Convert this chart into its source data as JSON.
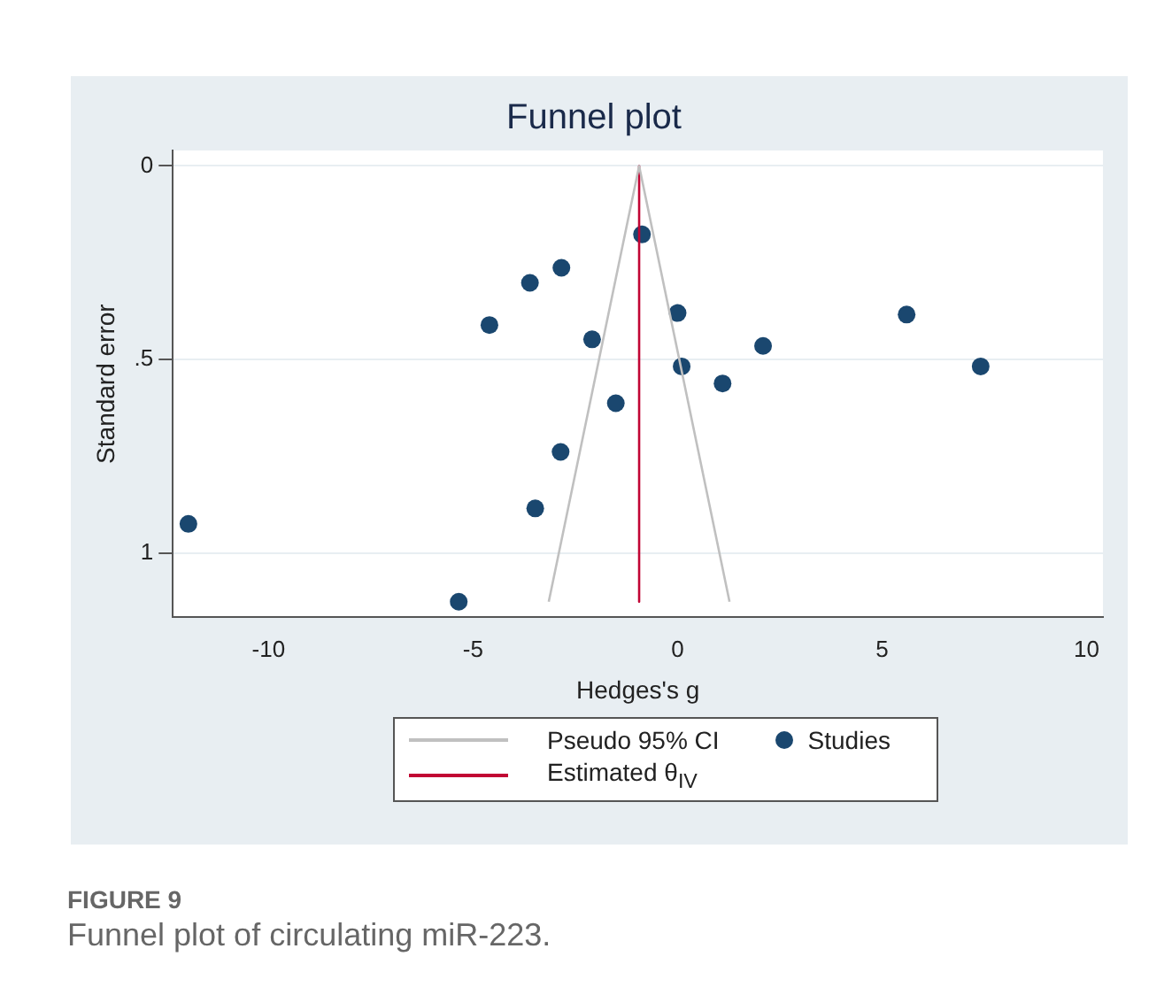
{
  "chart_data": {
    "type": "scatter",
    "title": "Funnel plot",
    "xlabel": "Hedges's g",
    "ylabel": "Standard error",
    "xlim": [
      -12.34,
      10.4
    ],
    "ylim": [
      1.166,
      -0.04
    ],
    "xticks": [
      -10,
      -5,
      0,
      5,
      10
    ],
    "yticks": [
      {
        "value": 0,
        "label": "0"
      },
      {
        "value": 0.5,
        "label": ".5"
      },
      {
        "value": 1,
        "label": "1"
      }
    ],
    "grid": "y",
    "legend": "bottom",
    "series": [
      {
        "name": "Pseudo 95% CI",
        "type": "line",
        "color": "#c0c0c0",
        "x": [
          -3.15,
          -0.94,
          1.27
        ],
        "values": [
          1.126,
          0,
          1.126
        ]
      },
      {
        "name": "Estimated θ$_{IV}$",
        "type": "line",
        "color": "#c10534",
        "x": [
          -0.94,
          -0.94
        ],
        "values": [
          0,
          1.126
        ]
      },
      {
        "name": "Studies",
        "type": "scatter",
        "marker": "circle",
        "color": "#1a476f",
        "x": [
          -0.87,
          -2.84,
          -3.61,
          -4.6,
          0.0,
          5.6,
          -2.09,
          2.09,
          0.1,
          7.41,
          1.1,
          -1.51,
          -2.86,
          -3.48,
          -11.96,
          -5.35
        ],
        "values": [
          0.177,
          0.263,
          0.302,
          0.411,
          0.38,
          0.384,
          0.448,
          0.465,
          0.518,
          0.518,
          0.562,
          0.613,
          0.739,
          0.885,
          0.925,
          1.126
        ]
      }
    ],
    "annotations": [
      "FIGURE 9",
      "Funnel plot of circulating miR-223."
    ]
  }
}
